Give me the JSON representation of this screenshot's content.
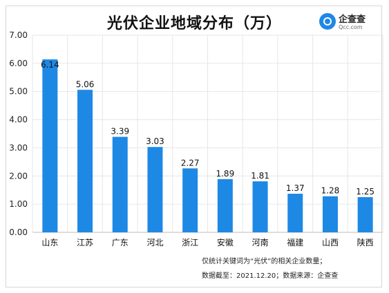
{
  "title": "光伏企业地域分布（万）",
  "logo": {
    "name": "企查查",
    "sub": "Qcc.com"
  },
  "footnotes": [
    "仅统计关键词为“光伏”的相关企业数量；",
    "数据截至：2021.12.20；数据来源：企查查"
  ],
  "chart_data": {
    "type": "bar",
    "title": "光伏企业地域分布（万）",
    "categories": [
      "山东",
      "江苏",
      "广东",
      "河北",
      "浙江",
      "安徽",
      "河南",
      "福建",
      "山西",
      "陕西"
    ],
    "values": [
      6.14,
      5.06,
      3.39,
      3.03,
      2.27,
      1.89,
      1.81,
      1.37,
      1.28,
      1.25
    ],
    "value_labels": [
      "6.14",
      "5.06",
      "3.39",
      "3.03",
      "2.27",
      "1.89",
      "1.81",
      "1.37",
      "1.28",
      "1.25"
    ],
    "ylim": [
      0,
      7
    ],
    "yticks": [
      "0.00",
      "1.00",
      "2.00",
      "3.00",
      "4.00",
      "5.00",
      "6.00",
      "7.00"
    ],
    "xlabel": "",
    "ylabel": "",
    "grid": true,
    "bar_color": "#1e88e5",
    "grid_color": "#e6e6e6"
  }
}
